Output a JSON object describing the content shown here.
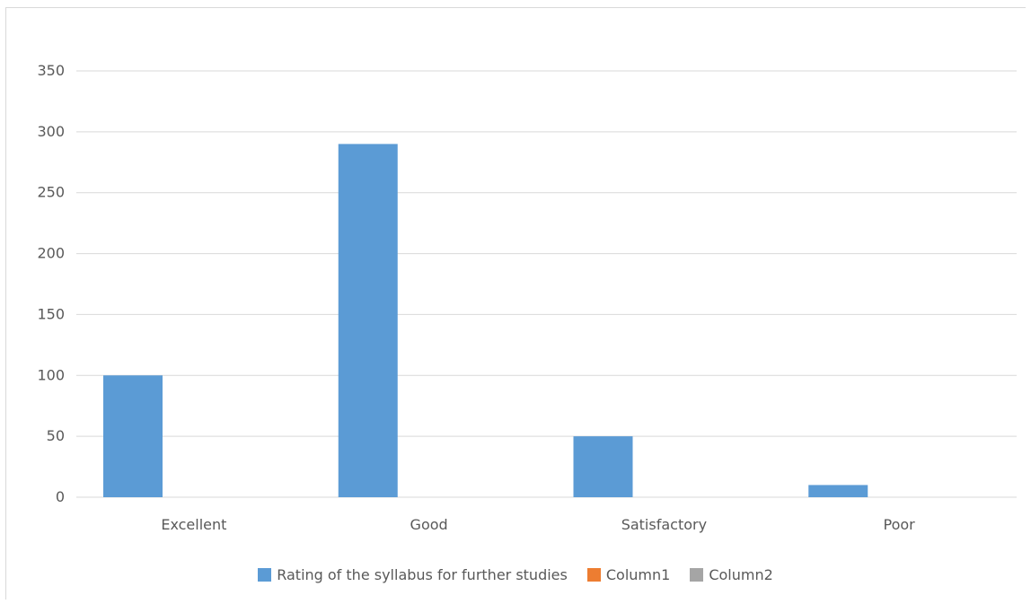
{
  "chart_data": {
    "type": "bar",
    "categories": [
      "Excellent",
      "Good",
      "Satisfactory",
      "Poor"
    ],
    "series": [
      {
        "name": "Rating of the syllabus for further studies",
        "values": [
          100,
          290,
          50,
          10
        ],
        "color": "#5b9bd5"
      },
      {
        "name": "Column1",
        "values": [
          0,
          0,
          0,
          0
        ],
        "color": "#ed7d31"
      },
      {
        "name": "Column2",
        "values": [
          0,
          0,
          0,
          0
        ],
        "color": "#a5a5a5"
      }
    ],
    "ylim": [
      0,
      350
    ],
    "yticks": [
      0,
      50,
      100,
      150,
      200,
      250,
      300,
      350
    ],
    "grid": true,
    "legend_position": "bottom"
  }
}
